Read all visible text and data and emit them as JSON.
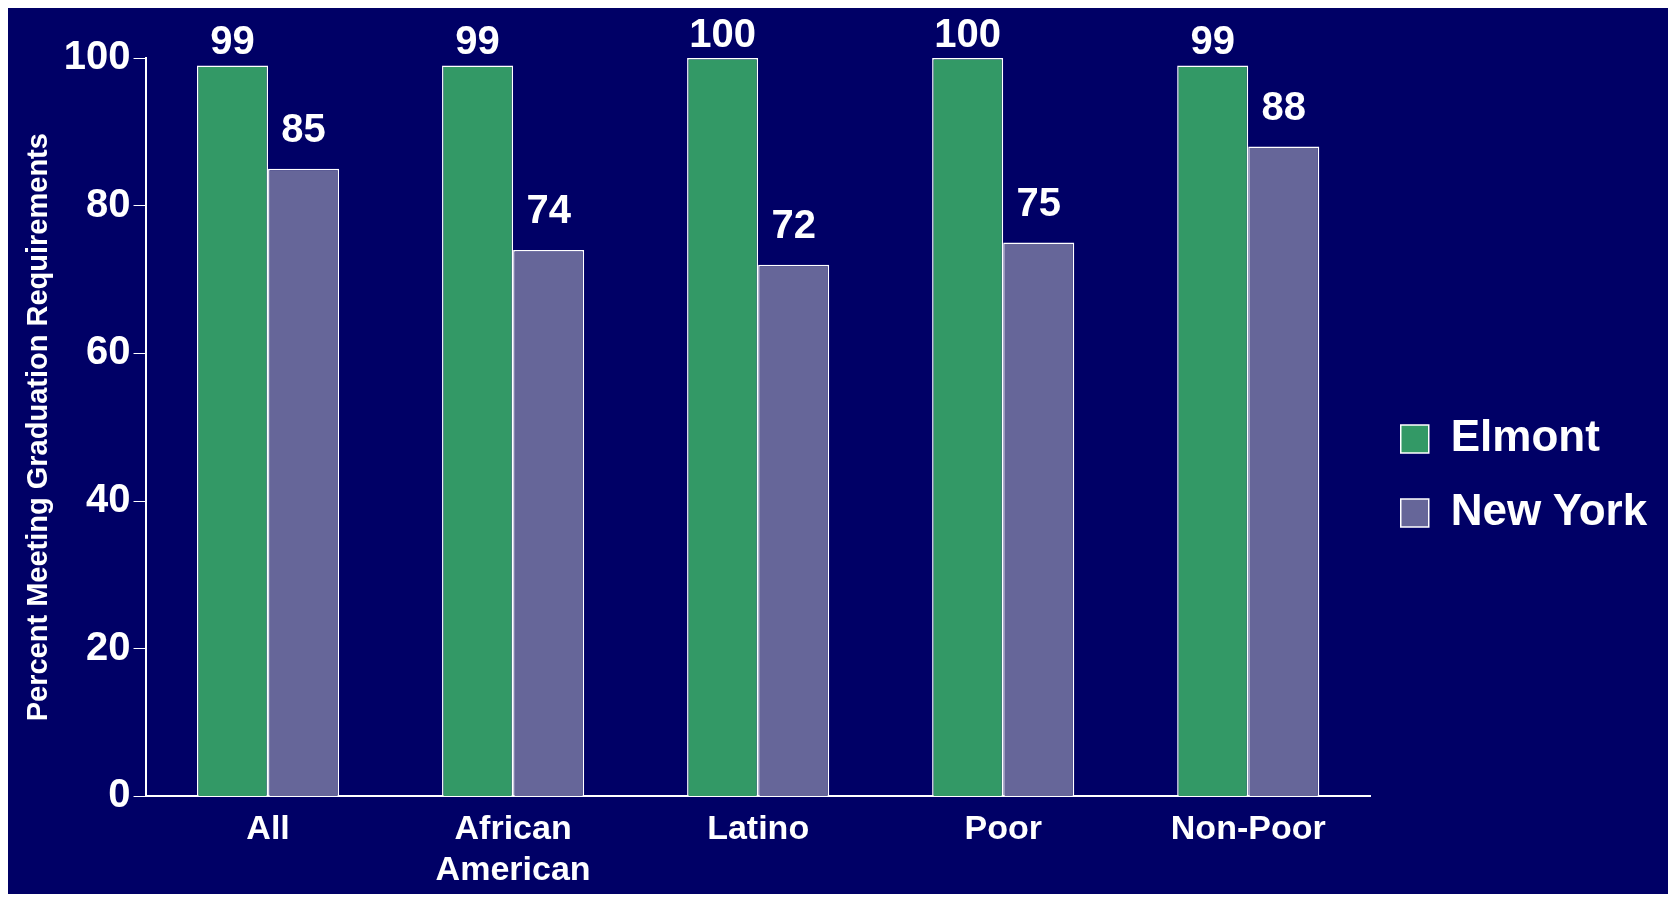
{
  "chart_data": {
    "type": "bar",
    "ylabel": "Percent Meeting Graduation Requirements",
    "categories": [
      [
        "All"
      ],
      [
        "African",
        "American"
      ],
      [
        "Latino"
      ],
      [
        "Poor"
      ],
      [
        "Non-Poor"
      ]
    ],
    "series": [
      {
        "name": "Elmont",
        "color": "#339966",
        "values": [
          99,
          99,
          100,
          100,
          99
        ]
      },
      {
        "name": "New York",
        "color": "#666699",
        "values": [
          85,
          74,
          72,
          75,
          88
        ]
      }
    ],
    "ylim": [
      0,
      100
    ],
    "yticks": [
      0,
      20,
      40,
      60,
      80,
      100
    ],
    "grid": false,
    "legend": "right",
    "data_labels": true
  }
}
